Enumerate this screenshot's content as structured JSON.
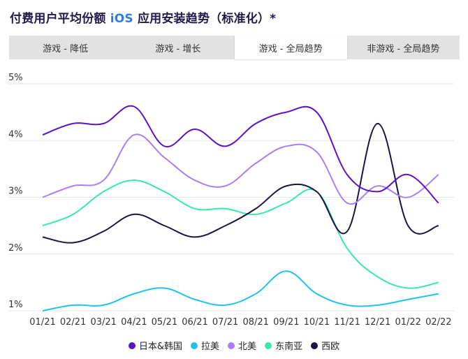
{
  "header": {
    "title_prefix": "付费用户平均份额",
    "title_accent": "iOS",
    "title_suffix": "应用安装趋势（标准化）*"
  },
  "tabs": [
    {
      "label": "游戏 - 降低",
      "active": false
    },
    {
      "label": "游戏 - 增长",
      "active": false
    },
    {
      "label": "游戏 - 全局趋势",
      "active": true
    },
    {
      "label": "非游戏 - 全局趋势",
      "active": false
    }
  ],
  "chart_data": {
    "type": "line",
    "title": "付费用户平均份额 iOS 应用安装趋势（标准化）*",
    "xlabel": "",
    "ylabel": "",
    "categories": [
      "01/21",
      "02/21",
      "03/21",
      "04/21",
      "05/21",
      "06/21",
      "07/21",
      "08/21",
      "09/21",
      "10/21",
      "11/21",
      "12/21",
      "01/22",
      "02/22"
    ],
    "y_ticks": [
      "5%",
      "4%",
      "3%",
      "2%",
      "1%"
    ],
    "y_tick_values": [
      5,
      4,
      3,
      2,
      1
    ],
    "ylim": [
      1,
      5
    ],
    "grid": true,
    "legend_position": "bottom",
    "series": [
      {
        "name": "日本&韩国",
        "color": "#5a12c8",
        "values": [
          4.1,
          4.3,
          4.3,
          4.6,
          3.9,
          4.2,
          3.9,
          4.3,
          4.5,
          4.5,
          3.4,
          3.1,
          3.4,
          2.9
        ]
      },
      {
        "name": "拉美",
        "color": "#1cc3ee",
        "values": [
          1.0,
          1.1,
          1.1,
          1.3,
          1.4,
          1.2,
          1.1,
          1.3,
          1.7,
          1.3,
          1.1,
          1.1,
          1.2,
          1.3
        ]
      },
      {
        "name": "北美",
        "color": "#a77ff2",
        "values": [
          3.0,
          3.2,
          3.3,
          4.1,
          3.7,
          3.3,
          3.2,
          3.6,
          3.9,
          3.8,
          2.9,
          3.2,
          3.0,
          3.4
        ]
      },
      {
        "name": "东南亚",
        "color": "#37e8ad",
        "values": [
          2.5,
          2.7,
          3.1,
          3.3,
          3.1,
          2.8,
          2.8,
          2.7,
          2.9,
          3.1,
          2.1,
          1.6,
          1.4,
          1.5
        ]
      },
      {
        "name": "西欧",
        "color": "#1c1244",
        "values": [
          2.3,
          2.2,
          2.4,
          2.7,
          2.5,
          2.3,
          2.5,
          2.8,
          3.2,
          3.1,
          2.4,
          4.3,
          2.5,
          2.5
        ]
      }
    ]
  }
}
